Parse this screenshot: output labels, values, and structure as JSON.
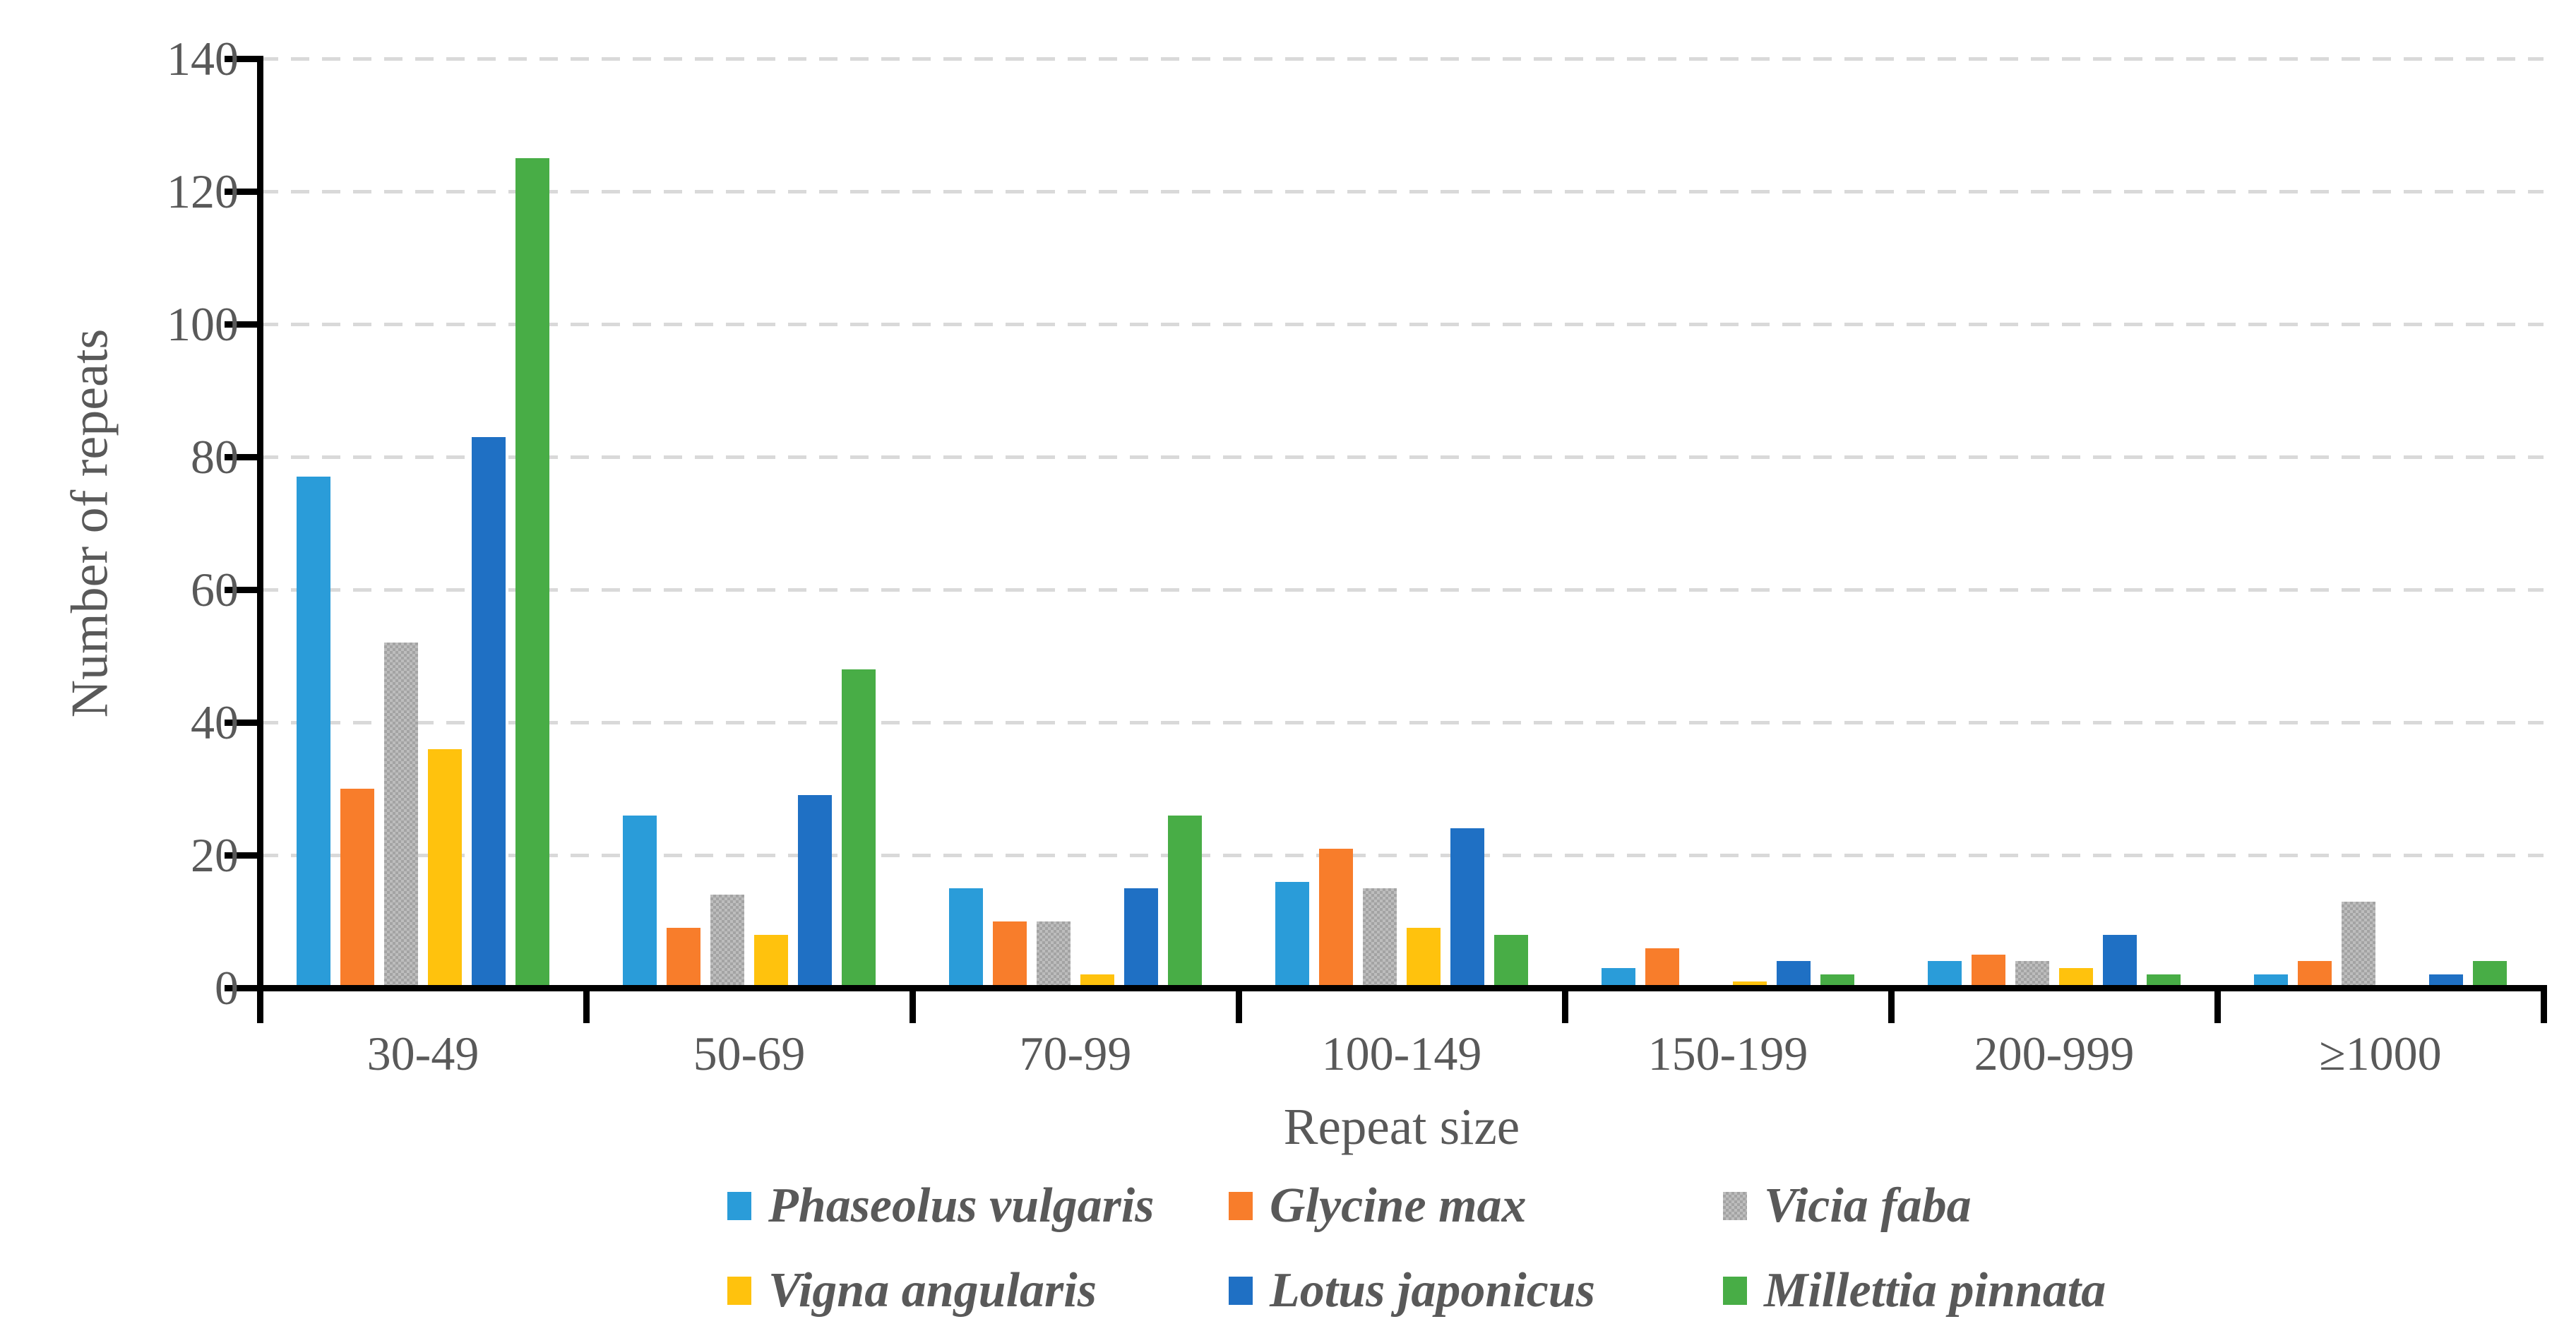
{
  "chart_data": {
    "type": "bar",
    "title": "",
    "xlabel": "Repeat size",
    "ylabel": "Number of repeats",
    "categories": [
      "30-49",
      "50-69",
      "70-99",
      "100-149",
      "150-199",
      "200-999",
      "≥1000"
    ],
    "series": [
      {
        "name": "Phaseolus vulgaris",
        "color": "#2A9CD9",
        "pattern": "solid",
        "values": [
          77,
          26,
          15,
          16,
          3,
          4,
          2
        ]
      },
      {
        "name": "Glycine max",
        "color": "#F87D2B",
        "pattern": "solid",
        "values": [
          30,
          9,
          10,
          21,
          6,
          5,
          4
        ]
      },
      {
        "name": "Vicia faba",
        "color": "#B2B2B2",
        "pattern": "checker",
        "values": [
          52,
          14,
          10,
          15,
          0,
          4,
          13
        ]
      },
      {
        "name": "Vigna angularis",
        "color": "#FFC20D",
        "pattern": "solid",
        "values": [
          36,
          8,
          2,
          9,
          1,
          3,
          0
        ]
      },
      {
        "name": "Lotus japonicus",
        "color": "#1F70C4",
        "pattern": "solid",
        "values": [
          83,
          29,
          15,
          24,
          4,
          8,
          2
        ]
      },
      {
        "name": "Millettia pinnata",
        "color": "#48AD46",
        "pattern": "solid",
        "values": [
          125,
          48,
          26,
          8,
          2,
          2,
          4
        ]
      }
    ],
    "ylim": [
      0,
      140
    ],
    "yticks": [
      0,
      20,
      40,
      60,
      80,
      100,
      120,
      140
    ],
    "grid": "horizontal dashed",
    "legend_position": "bottom",
    "colors": {
      "axis_line": "#000000",
      "tick_label": "#595959",
      "gridline": "#D9D9D9"
    }
  }
}
